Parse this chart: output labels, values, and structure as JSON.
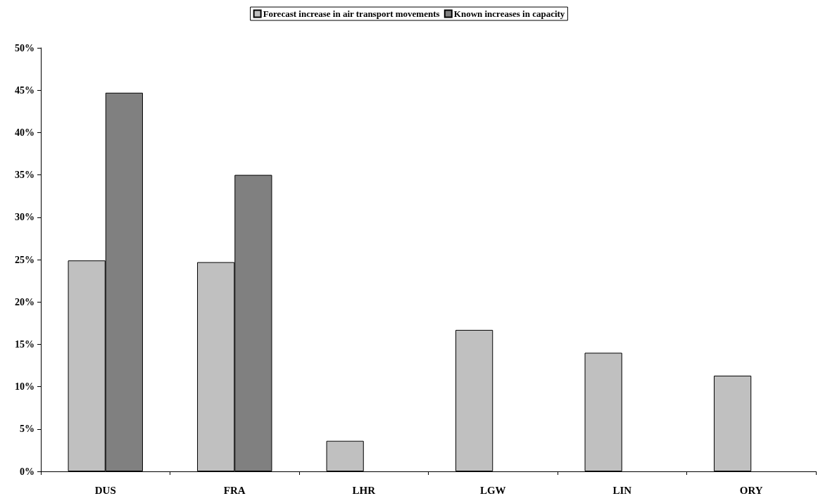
{
  "chart_data": {
    "type": "bar",
    "categories": [
      "DUS",
      "FRA",
      "LHR",
      "LGW",
      "LIN",
      "ORY"
    ],
    "series": [
      {
        "name": "Forecast increase in air transport movements",
        "color": "#c0c0c0",
        "values": [
          24.9,
          24.7,
          3.6,
          16.7,
          14.0,
          11.3
        ]
      },
      {
        "name": "Known increases in capacity",
        "color": "#808080",
        "values": [
          44.7,
          35.0,
          null,
          null,
          null,
          null
        ]
      }
    ],
    "ylim": [
      0,
      50
    ],
    "yticks": [
      {
        "value": 0,
        "label": "0%"
      },
      {
        "value": 5,
        "label": "5%"
      },
      {
        "value": 10,
        "label": "10%"
      },
      {
        "value": 15,
        "label": "15%"
      },
      {
        "value": 20,
        "label": "20%"
      },
      {
        "value": 25,
        "label": "25%"
      },
      {
        "value": 30,
        "label": "30%"
      },
      {
        "value": 35,
        "label": "35%"
      },
      {
        "value": 40,
        "label": "40%"
      },
      {
        "value": 45,
        "label": "45%"
      },
      {
        "value": 50,
        "label": "50%"
      }
    ],
    "grid": false,
    "legend": "top"
  }
}
